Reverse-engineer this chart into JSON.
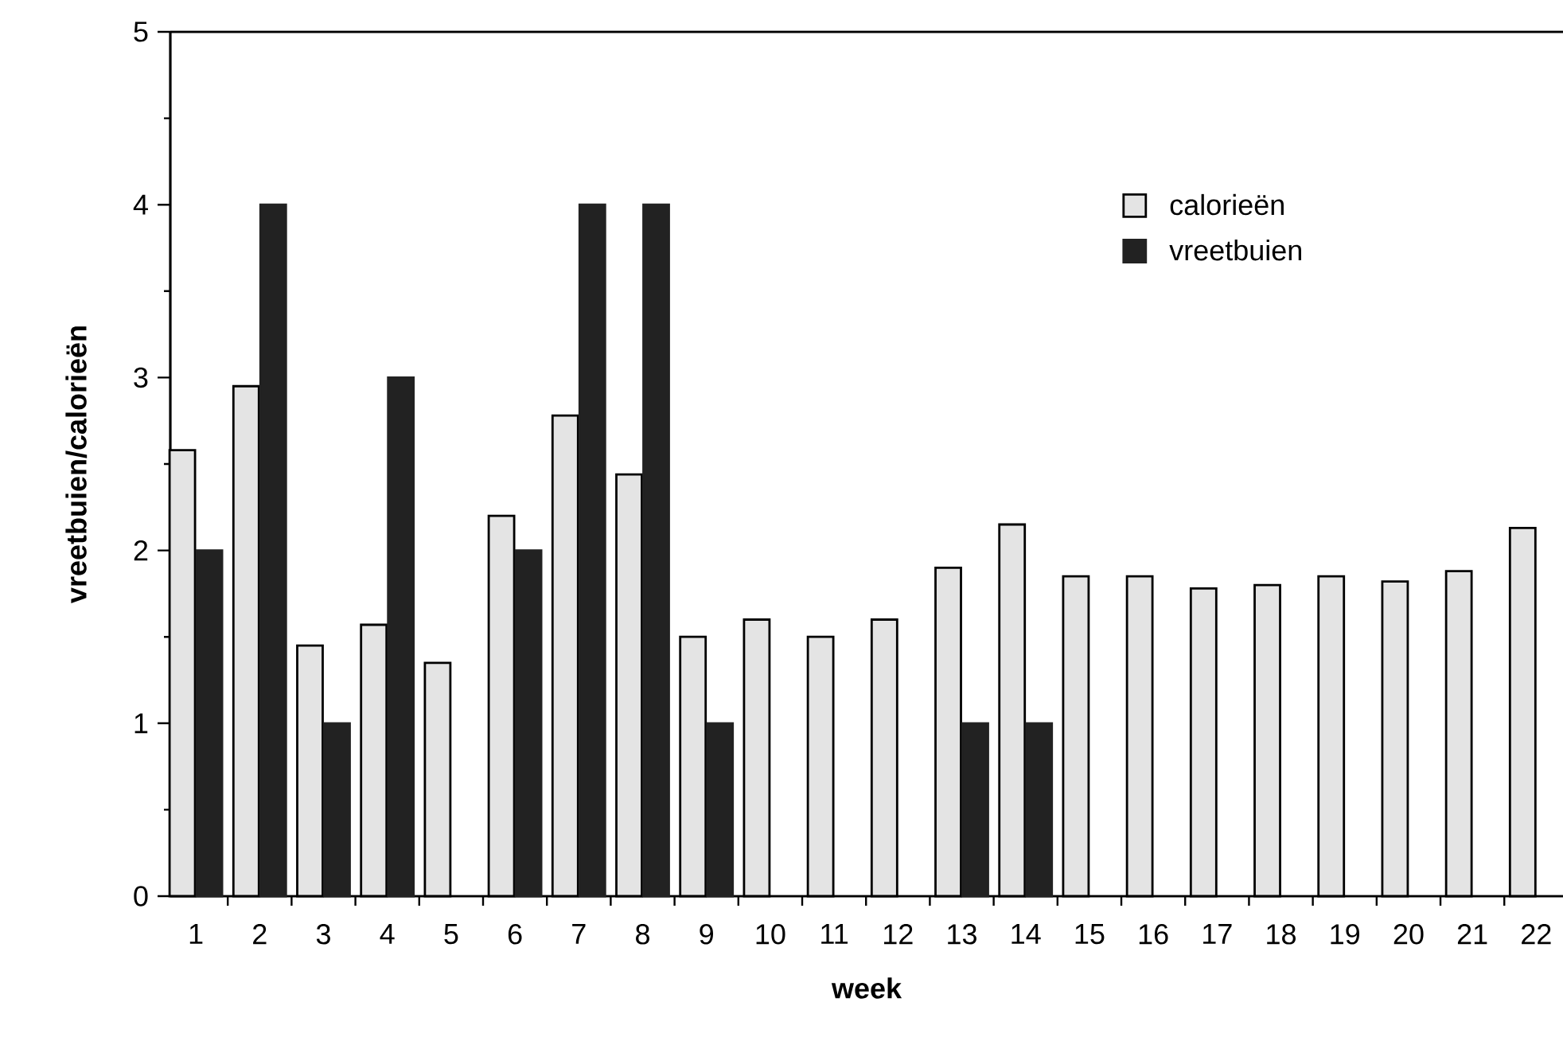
{
  "chart_data": {
    "type": "bar",
    "xlabel": "week",
    "ylabel": "vreetbuien/calorieën",
    "categories": [
      "1",
      "2",
      "3",
      "4",
      "5",
      "6",
      "7",
      "8",
      "9",
      "10",
      "11",
      "12",
      "13",
      "14",
      "15",
      "16",
      "17",
      "18",
      "19",
      "20",
      "21",
      "22"
    ],
    "series": [
      {
        "name": "calorieën",
        "color": "#e4e4e4",
        "values": [
          2.58,
          2.95,
          1.45,
          1.57,
          1.35,
          2.2,
          2.78,
          2.44,
          1.5,
          1.6,
          1.5,
          1.6,
          1.9,
          2.15,
          1.85,
          1.85,
          1.78,
          1.8,
          1.85,
          1.82,
          1.88,
          2.13
        ]
      },
      {
        "name": "vreetbuien",
        "color": "#222222",
        "values": [
          2,
          4,
          1,
          3,
          null,
          2,
          4,
          4,
          1,
          null,
          null,
          null,
          1,
          1,
          null,
          null,
          null,
          null,
          null,
          null,
          null,
          null
        ]
      }
    ],
    "ylim": [
      0,
      5
    ],
    "yticks": [
      0,
      1,
      2,
      3,
      4,
      5
    ],
    "legend": "top right"
  }
}
